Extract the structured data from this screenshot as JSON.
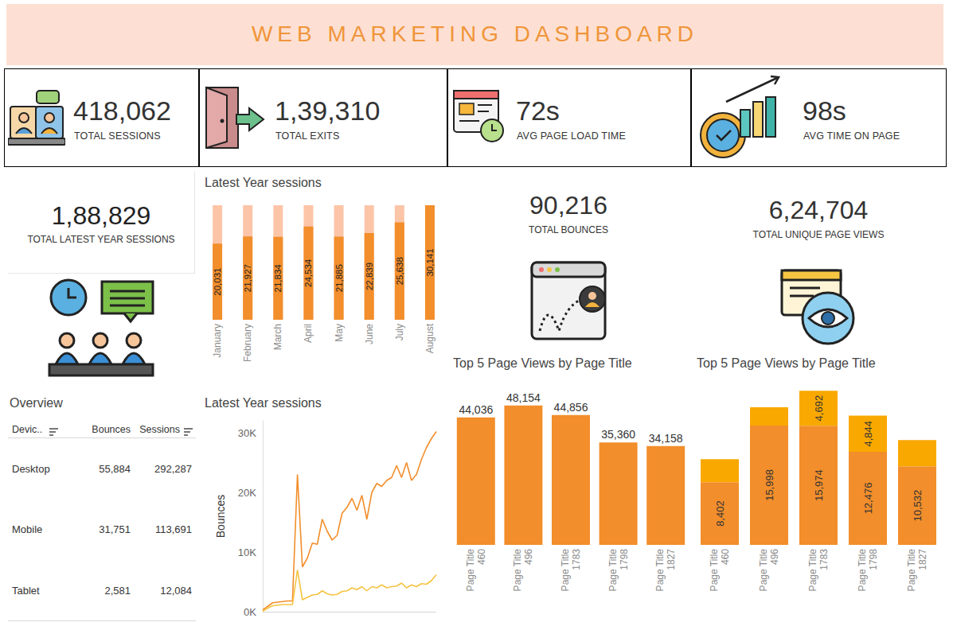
{
  "header": {
    "title": "WEB MARKETING DASHBOARD"
  },
  "kpis": [
    {
      "value": "418,062",
      "label": "TOTAL SESSIONS"
    },
    {
      "value": "1,39,310",
      "label": "TOTAL EXITS"
    },
    {
      "value": "72s",
      "label": "AVG PAGE LOAD TIME"
    },
    {
      "value": "98s",
      "label": "AVG TIME ON PAGE"
    }
  ],
  "summary": [
    {
      "value": "1,88,829",
      "label": "TOTAL LATEST YEAR SESSIONS"
    },
    {
      "value": "90,216",
      "label": "TOTAL BOUNCES"
    },
    {
      "value": "6,24,704",
      "label": "TOTAL UNIQUE PAGE VIEWS"
    }
  ],
  "overview": {
    "title": "Overview",
    "columns": [
      "Devic..",
      "Bounces",
      "Sessions"
    ],
    "rows": [
      [
        "Desktop",
        "55,884",
        "292,287"
      ],
      [
        "Mobile",
        "31,751",
        "113,691"
      ],
      [
        "Tablet",
        "2,581",
        "12,084"
      ]
    ]
  },
  "chart_data": [
    {
      "type": "bar",
      "title": "Latest Year sessions",
      "categories": [
        "January",
        "February",
        "March",
        "April",
        "May",
        "June",
        "July",
        "August"
      ],
      "values": [
        20031,
        21927,
        21834,
        24534,
        21885,
        22839,
        25638,
        30141
      ],
      "value_labels": [
        "20,031",
        "21,927",
        "21,834",
        "24,534",
        "21,885",
        "22,839",
        "25,638",
        "30,141"
      ],
      "color": "#f28e2b",
      "ylim": [
        0,
        30141
      ],
      "grid": false,
      "data_labels": true,
      "tick_labels": "x"
    },
    {
      "type": "line",
      "title": "Latest Year sessions",
      "y_label": "Bounces",
      "categories": [
        null,
        null,
        null,
        null,
        null,
        null,
        null,
        null,
        null,
        null,
        null,
        null,
        null,
        null,
        null,
        null,
        null,
        null,
        null,
        null,
        null,
        null,
        null,
        null,
        null,
        null,
        null,
        null,
        null,
        null,
        null,
        null,
        null,
        null,
        null,
        null
      ],
      "series": [
        {
          "color": "#f28e2b",
          "values": [
            300,
            900,
            1500,
            1600,
            1700,
            1800,
            1800,
            23000,
            7500,
            9000,
            11500,
            11300,
            15500,
            13500,
            12000,
            12800,
            16500,
            17500,
            19000,
            17000,
            19500,
            15500,
            20000,
            21500,
            21000,
            22000,
            22500,
            24500,
            22500,
            25000,
            22000,
            23000,
            25500,
            27500,
            29000,
            30200
          ]
        },
        {
          "color": "#f5c342",
          "values": [
            100,
            600,
            1000,
            1100,
            1200,
            1200,
            1200,
            7000,
            2000,
            2400,
            2800,
            2900,
            3500,
            3000,
            2800,
            2900,
            3400,
            3500,
            4000,
            3700,
            4200,
            3500,
            4200,
            4000,
            4500,
            4000,
            4200,
            4300,
            4800,
            4000,
            4500,
            4200,
            4700,
            4600,
            5200,
            6200
          ]
        }
      ],
      "ylim": [
        0,
        32000
      ],
      "yticks": [
        {
          "value": 0,
          "label": "0K"
        },
        {
          "value": 10000,
          "label": "10K"
        },
        {
          "value": 20000,
          "label": "20K"
        },
        {
          "value": 30000,
          "label": "30K"
        }
      ],
      "grid": false,
      "tick_labels": "y"
    },
    {
      "type": "bar",
      "title": "Top 5 Page Views by Page Title",
      "categories": [
        "Page Title\n460",
        "Page Title\n496",
        "Page Title\n1783",
        "Page Title\n1798",
        "Page Title\n1827"
      ],
      "values": [
        44036,
        48154,
        44856,
        35360,
        34158
      ],
      "value_labels": [
        "44,036",
        "48,154",
        "44,856",
        "35,360",
        "34,158"
      ],
      "color": "#f28e2b",
      "ylim": [
        0,
        50000
      ],
      "grid": false,
      "data_labels": true,
      "tick_labels": "x"
    },
    {
      "type": "bar",
      "title": "Top 5 Page Views by Page Title",
      "stacked": true,
      "categories": [
        "Page Title\n460",
        "Page Title\n496",
        "Page Title\n1783",
        "Page Title\n1798",
        "Page Title\n1827"
      ],
      "series": [
        {
          "color": "#f28e2b",
          "values": [
            8402,
            15998,
            15974,
            12476,
            10532
          ],
          "value_labels": [
            "8,402",
            "15,998",
            "15,974",
            "12,476",
            "10,532"
          ]
        },
        {
          "color": "#f9a800",
          "values": [
            3085,
            2450,
            4692,
            4844,
            3500
          ],
          "value_labels": [
            null,
            null,
            "4,692",
            "4,844",
            null
          ]
        }
      ],
      "ylim": [
        0,
        21000
      ],
      "grid": false,
      "data_labels": true,
      "tick_labels": "x"
    }
  ]
}
